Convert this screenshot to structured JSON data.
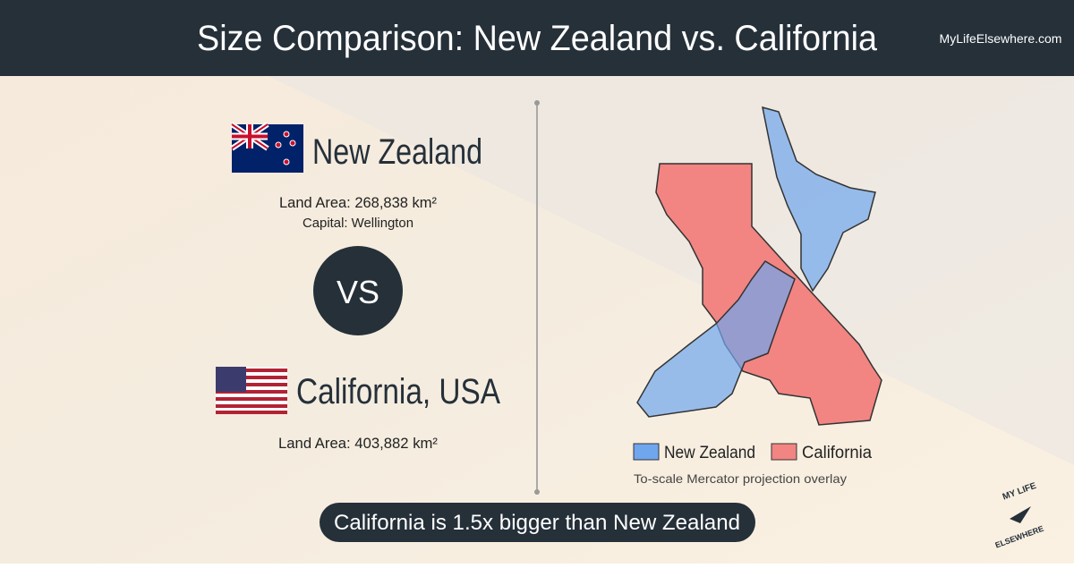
{
  "header": {
    "title": "Size Comparison: New Zealand vs. California",
    "site": "MyLifeElsewhere.com"
  },
  "first": {
    "name": "New Zealand",
    "area": "Land Area: 268,838 km²",
    "capital": "Capital: Wellington"
  },
  "vs": "VS",
  "second": {
    "name": "California, USA",
    "area": "Land Area: 403,882 km²"
  },
  "legend": [
    "New Zealand",
    "California"
  ],
  "caption": "To-scale Mercator projection overlay",
  "banner": "California is 1.5x bigger than New Zealand",
  "logo": {
    "top": "MY LIFE",
    "bottom": "ELSEWHERE"
  }
}
